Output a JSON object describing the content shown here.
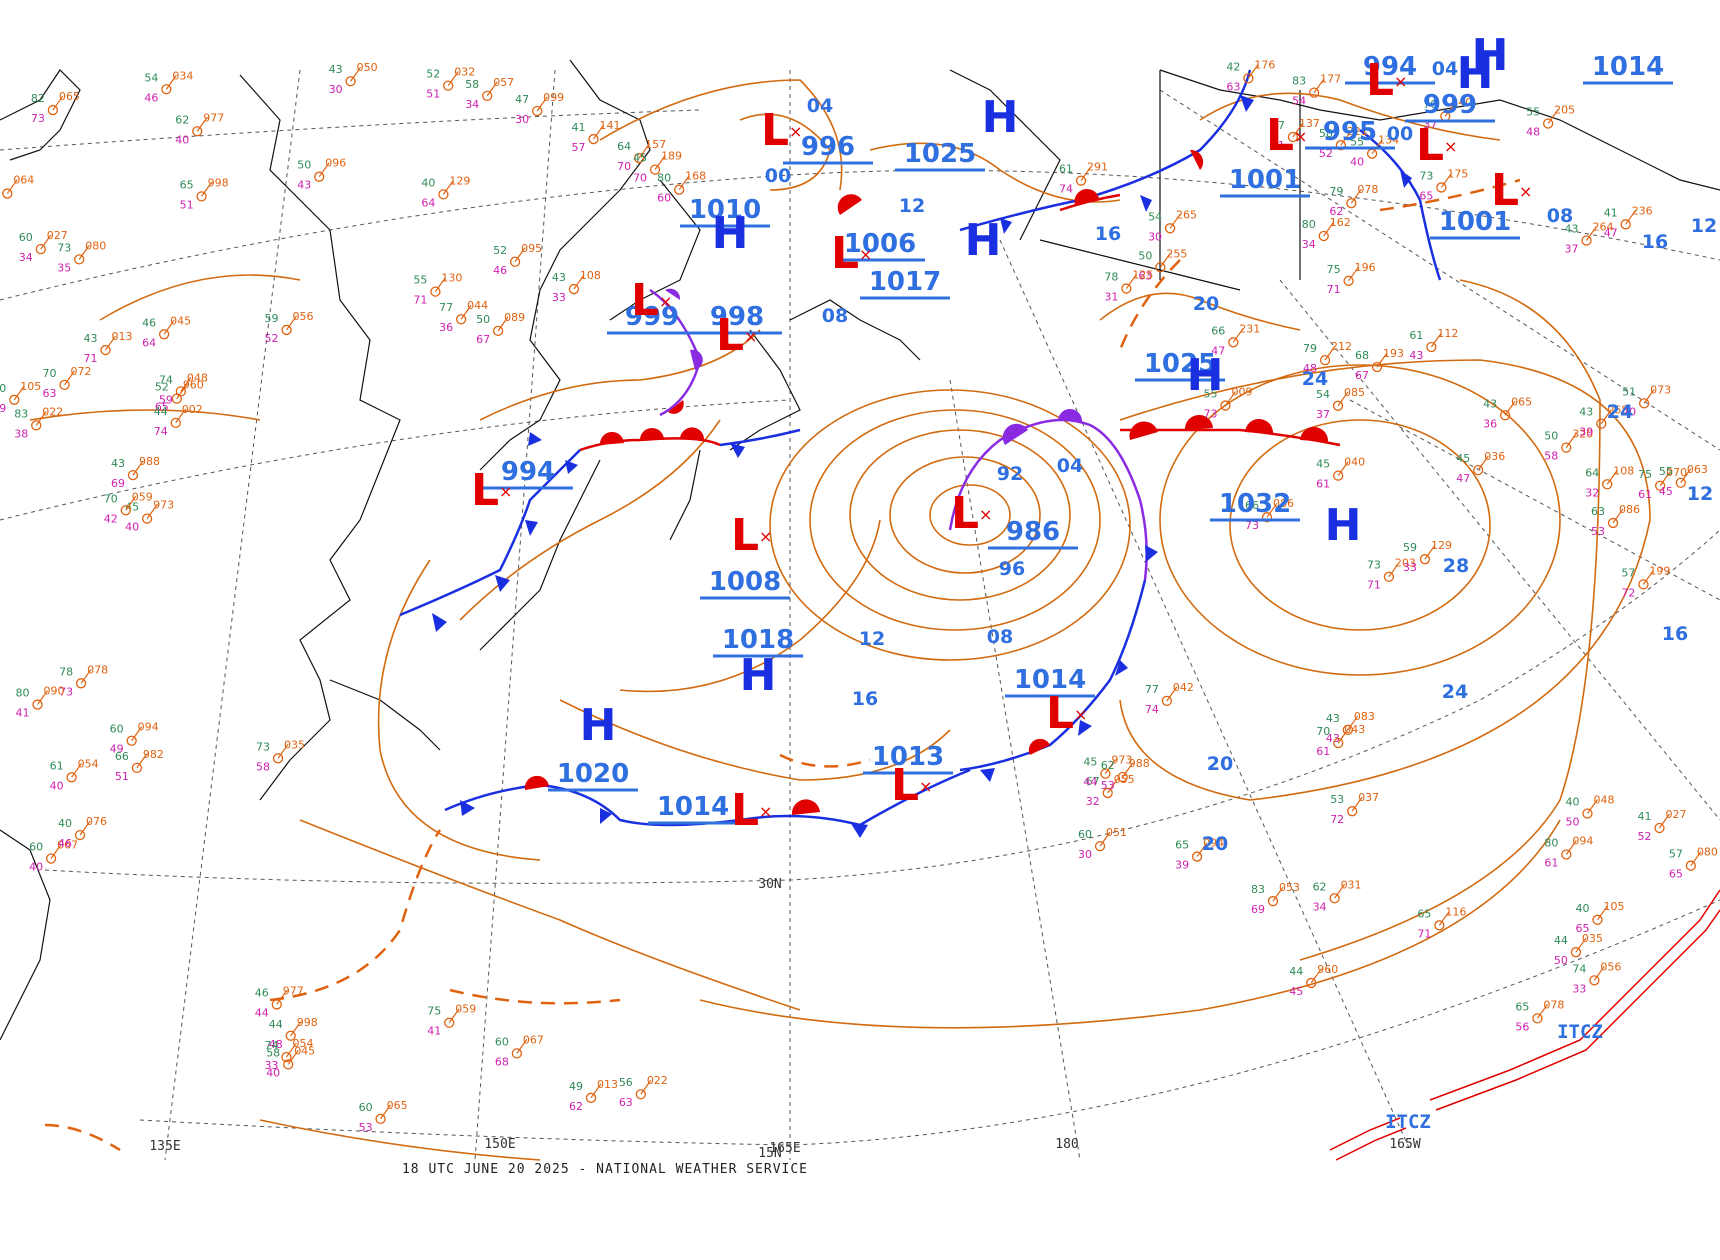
{
  "footer": {
    "caption": "18 UTC JUNE 20 2025 - NATIONAL WEATHER SERVICE"
  },
  "colors": {
    "high": "#2f6fe0",
    "low": "#e00000",
    "isobar": "#d26a10",
    "cold": "#1a2fe0",
    "warm": "#e00000",
    "occluded": "#8a2be2",
    "itcz": "#e00000",
    "graticule": "#555555",
    "coast": "#111111"
  },
  "graticule_labels": [
    "150E",
    "165E",
    "180",
    "165W",
    "30N",
    "15N",
    "135E"
  ],
  "highs": [
    {
      "id": "h1025-north",
      "pressure": "1025"
    },
    {
      "id": "h1025-center",
      "pressure": "1025"
    },
    {
      "id": "h1017",
      "pressure": "1017"
    },
    {
      "id": "h1010",
      "pressure": "1010"
    },
    {
      "id": "h1032",
      "pressure": "1032"
    },
    {
      "id": "h1018",
      "pressure": "1018"
    },
    {
      "id": "h1020",
      "pressure": "1020"
    },
    {
      "id": "h999-ne",
      "pressure": "999"
    },
    {
      "id": "h1014-ne",
      "pressure": "1014"
    }
  ],
  "lows": [
    {
      "id": "l996",
      "pressure": "996"
    },
    {
      "id": "l1006",
      "pressure": "1006"
    },
    {
      "id": "l999",
      "pressure": "999"
    },
    {
      "id": "l998",
      "pressure": "998"
    },
    {
      "id": "l994",
      "pressure": "994"
    },
    {
      "id": "l1008",
      "pressure": "1008"
    },
    {
      "id": "l986",
      "pressure": "986"
    },
    {
      "id": "l1014-east",
      "pressure": "1014"
    },
    {
      "id": "l1013",
      "pressure": "1013"
    },
    {
      "id": "l1014-south",
      "pressure": "1014"
    },
    {
      "id": "l1001",
      "pressure": "1001"
    },
    {
      "id": "l995",
      "pressure": "995"
    },
    {
      "id": "l994-ne",
      "pressure": "994"
    },
    {
      "id": "l1001-ne",
      "pressure": "1001"
    }
  ],
  "isobar_labels": [
    "04",
    "00",
    "08",
    "12",
    "16",
    "20",
    "24",
    "28",
    "92",
    "96",
    "04",
    "08",
    "12",
    "16",
    "20",
    "24",
    "20",
    "16",
    "12",
    "08",
    "04",
    "00",
    "24",
    "16",
    "12"
  ],
  "itcz_labels": [
    "ITCZ",
    "ITCZ"
  ],
  "station_labels": [
    "973",
    "988",
    "960",
    "977",
    "998",
    "065",
    "022",
    "059",
    "067",
    "045",
    "013",
    "054",
    "048",
    "027",
    "105",
    "056",
    "094",
    "080",
    "078",
    "035",
    "034",
    "072",
    "076",
    "002",
    "982",
    "090",
    "064",
    "089",
    "050",
    "044",
    "032",
    "096",
    "099",
    "057",
    "129",
    "130",
    "095",
    "108",
    "141",
    "157",
    "189",
    "168",
    "212",
    "196",
    "193",
    "177",
    "175",
    "078",
    "291",
    "340",
    "265",
    "236",
    "255",
    "231",
    "205",
    "264",
    "221",
    "176",
    "162",
    "137",
    "125",
    "134",
    "320",
    "199",
    "068",
    "086",
    "085",
    "070",
    "040",
    "063",
    "036",
    "086",
    "065",
    "203",
    "129",
    "073",
    "009",
    "108",
    "112",
    "094",
    "031",
    "051",
    "083",
    "053",
    "042",
    "116",
    "055",
    "037",
    "043"
  ]
}
